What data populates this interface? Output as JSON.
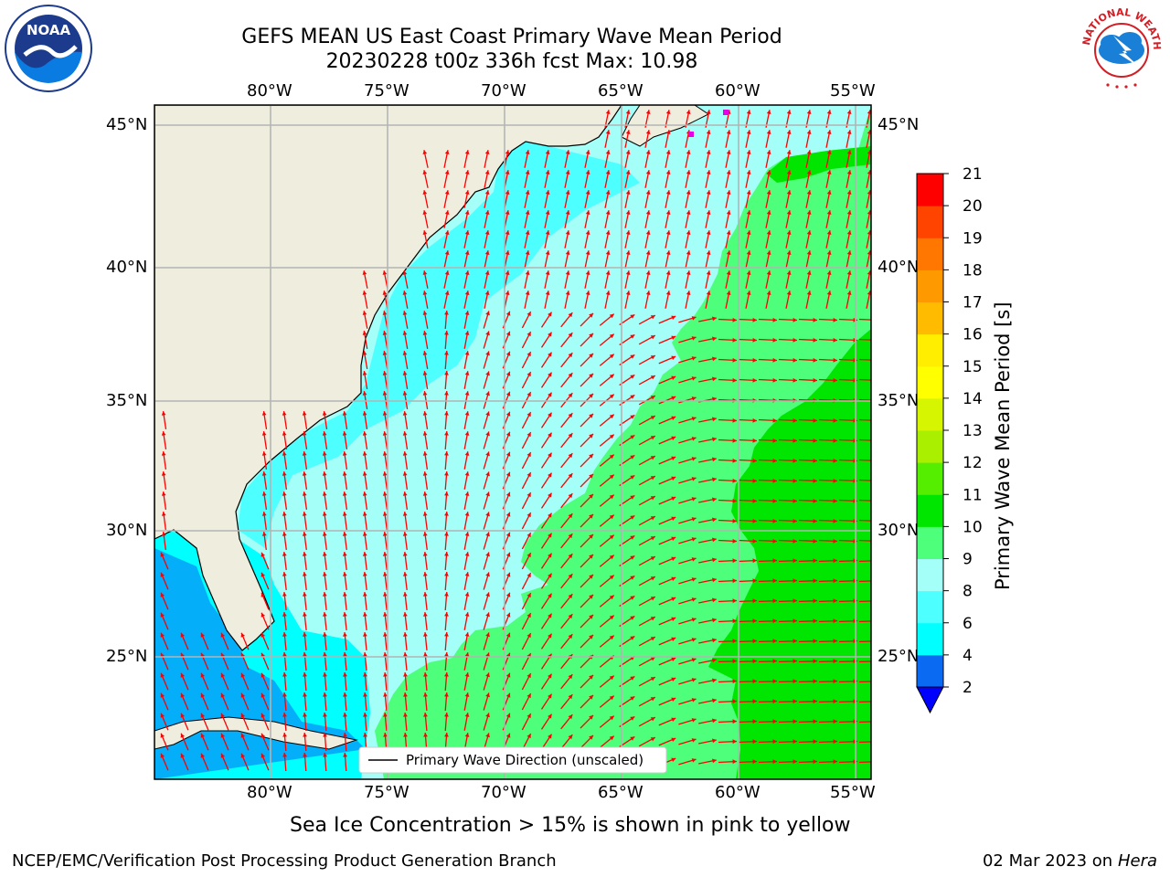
{
  "title_line1": "GEFS MEAN US East Coast Primary Wave Mean Period",
  "title_line2": "20230228 t00z 336h fcst   Max: 10.98",
  "lon_labels": [
    "80°W",
    "75°W",
    "70°W",
    "65°W",
    "60°W",
    "55°W"
  ],
  "lat_labels": [
    "45°N",
    "40°N",
    "35°N",
    "30°N",
    "25°N"
  ],
  "legend_label": "Primary Wave Direction (unscaled)",
  "colorbar": {
    "title": "Primary Wave Mean Period [s]",
    "ticks": [
      "2",
      "4",
      "6",
      "8",
      "9",
      "10",
      "11",
      "12",
      "13",
      "14",
      "15",
      "16",
      "17",
      "18",
      "19",
      "20",
      "21"
    ],
    "colors": [
      "#0a6bf2",
      "#00ffff",
      "#4dffff",
      "#a3fff8",
      "#4dff7a",
      "#00e600",
      "#55ee00",
      "#aaee00",
      "#d6f500",
      "#ffff00",
      "#ffee00",
      "#ffbb00",
      "#ff9900",
      "#ff7700",
      "#ff4400",
      "#ff0000"
    ],
    "under_color": "#0000ff"
  },
  "caption": "Sea Ice Concentration > 15% is shown in pink to yellow",
  "footer_left": "NCEP/EMC/Verification Post Processing Product Generation Branch",
  "footer_date": "02 Mar 2023 on",
  "footer_host": "Hera",
  "logo_left": "NOAA",
  "logo_right": "NATIONAL WEATHER SERVICE",
  "colors": {
    "land": "#efedde",
    "grid": "#b4b4b4",
    "arrow": "#ff0000",
    "coast": "#000000"
  }
}
